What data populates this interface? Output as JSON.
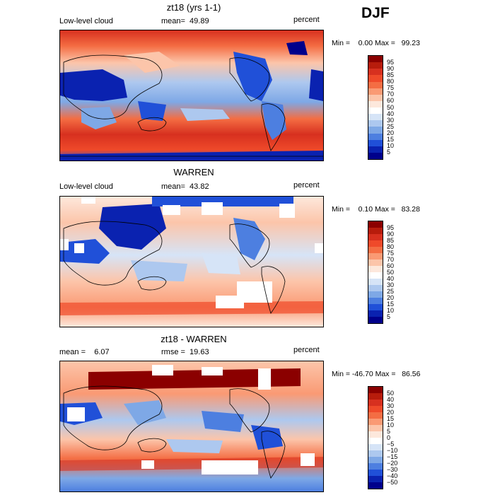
{
  "season": "DJF",
  "panels": [
    {
      "title": "zt18 (yrs 1-1)",
      "left_text": "Low-level cloud",
      "mean_text": "mean=  49.89",
      "right_text": "percent",
      "minmax_text": "Min =    0.00 Max =   99.23",
      "colorbar_labels": [
        "95",
        "90",
        "85",
        "80",
        "75",
        "70",
        "60",
        "50",
        "40",
        "30",
        "25",
        "20",
        "15",
        "10",
        "5"
      ]
    },
    {
      "title": "WARREN",
      "left_text": "Low-level cloud",
      "mean_text": "mean=  43.82",
      "right_text": "percent",
      "minmax_text": "Min =    0.10 Max =   83.28",
      "colorbar_labels": [
        "95",
        "90",
        "85",
        "80",
        "75",
        "70",
        "60",
        "50",
        "40",
        "30",
        "25",
        "20",
        "15",
        "10",
        "5"
      ]
    },
    {
      "title": "zt18 - WARREN",
      "left_text": "mean =    6.07",
      "mean_text": "rmse =  19.63",
      "right_text": "percent",
      "minmax_text": "Min = -46.70 Max =   86.56",
      "colorbar_labels": [
        "50",
        "40",
        "30",
        "20",
        "15",
        "10",
        "5",
        "0",
        "−5",
        "−10",
        "−15",
        "−20",
        "−30",
        "−40",
        "−50"
      ]
    }
  ],
  "colors": {
    "scale": [
      "#8b0000",
      "#b71c0c",
      "#d7301f",
      "#ef4a2a",
      "#f46d43",
      "#fa9a74",
      "#fcc5aa",
      "#fde8dc",
      "#ffffff",
      "#d6e4f7",
      "#adc8ef",
      "#7ea8e6",
      "#4d7fe0",
      "#2050d8",
      "#0a22b0",
      "#00008b"
    ]
  }
}
